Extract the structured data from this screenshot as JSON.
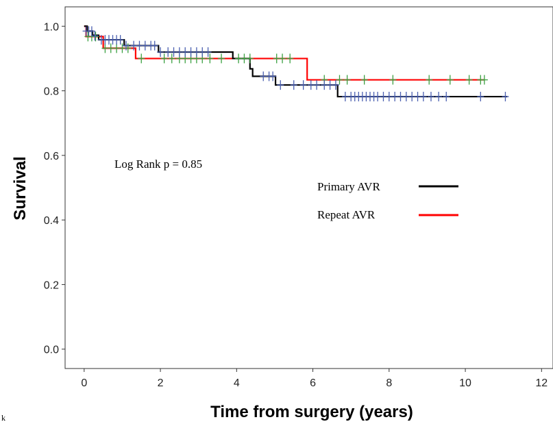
{
  "chart_data": {
    "type": "line",
    "subtype": "kaplan-meier",
    "title": "",
    "xlabel": "Time from surgery (years)",
    "ylabel": "Survival",
    "xlim": [
      -0.5,
      12.3
    ],
    "ylim": [
      -0.06,
      1.06
    ],
    "xticks": [
      0,
      2,
      4,
      6,
      8,
      10,
      12
    ],
    "yticks": [
      0.0,
      0.2,
      0.4,
      0.6,
      0.8,
      1.0
    ],
    "xtick_labels": [
      "0",
      "2",
      "4",
      "6",
      "8",
      "10",
      "12"
    ],
    "ytick_labels": [
      "0.0",
      "0.2",
      "0.4",
      "0.6",
      "0.8",
      "1.0"
    ],
    "annotation": "Log Rank p = 0.85",
    "grid": false,
    "legend_position": "right-middle",
    "series": [
      {
        "name": "Primary AVR",
        "color": "#000000",
        "censor_color": "#4a5fb0",
        "steps": [
          [
            0,
            1.0
          ],
          [
            0.08,
            0.985
          ],
          [
            0.22,
            0.972
          ],
          [
            0.38,
            0.958
          ],
          [
            1.05,
            0.94
          ],
          [
            1.95,
            0.92
          ],
          [
            3.9,
            0.9
          ],
          [
            4.35,
            0.868
          ],
          [
            4.42,
            0.845
          ],
          [
            5.02,
            0.818
          ],
          [
            6.65,
            0.782
          ],
          [
            11.1,
            0.782
          ]
        ],
        "censored": [
          [
            0.05,
            0.985
          ],
          [
            0.12,
            0.985
          ],
          [
            0.2,
            0.985
          ],
          [
            0.28,
            0.97
          ],
          [
            0.45,
            0.958
          ],
          [
            0.55,
            0.958
          ],
          [
            0.65,
            0.958
          ],
          [
            0.75,
            0.958
          ],
          [
            0.85,
            0.958
          ],
          [
            0.95,
            0.958
          ],
          [
            1.1,
            0.94
          ],
          [
            1.3,
            0.94
          ],
          [
            1.45,
            0.94
          ],
          [
            1.6,
            0.94
          ],
          [
            1.75,
            0.94
          ],
          [
            1.85,
            0.94
          ],
          [
            2.0,
            0.92
          ],
          [
            2.2,
            0.92
          ],
          [
            2.35,
            0.92
          ],
          [
            2.5,
            0.92
          ],
          [
            2.65,
            0.92
          ],
          [
            2.8,
            0.92
          ],
          [
            2.95,
            0.92
          ],
          [
            3.1,
            0.92
          ],
          [
            3.25,
            0.92
          ],
          [
            4.7,
            0.845
          ],
          [
            4.85,
            0.845
          ],
          [
            4.95,
            0.845
          ],
          [
            5.15,
            0.818
          ],
          [
            5.5,
            0.818
          ],
          [
            5.75,
            0.818
          ],
          [
            5.95,
            0.818
          ],
          [
            6.1,
            0.818
          ],
          [
            6.3,
            0.818
          ],
          [
            6.45,
            0.818
          ],
          [
            6.6,
            0.818
          ],
          [
            6.85,
            0.782
          ],
          [
            7.0,
            0.782
          ],
          [
            7.1,
            0.782
          ],
          [
            7.2,
            0.782
          ],
          [
            7.3,
            0.782
          ],
          [
            7.4,
            0.782
          ],
          [
            7.5,
            0.782
          ],
          [
            7.6,
            0.782
          ],
          [
            7.7,
            0.782
          ],
          [
            7.85,
            0.782
          ],
          [
            8.0,
            0.782
          ],
          [
            8.15,
            0.782
          ],
          [
            8.3,
            0.782
          ],
          [
            8.45,
            0.782
          ],
          [
            8.6,
            0.782
          ],
          [
            8.75,
            0.782
          ],
          [
            8.9,
            0.782
          ],
          [
            9.1,
            0.782
          ],
          [
            9.3,
            0.782
          ],
          [
            9.5,
            0.782
          ],
          [
            10.4,
            0.782
          ],
          [
            11.05,
            0.782
          ]
        ]
      },
      {
        "name": "Repeat AVR",
        "color": "#ff0000",
        "censor_color": "#3aa040",
        "steps": [
          [
            0,
            1.0
          ],
          [
            0.05,
            0.968
          ],
          [
            0.5,
            0.932
          ],
          [
            1.35,
            0.9
          ],
          [
            5.85,
            0.834
          ],
          [
            10.5,
            0.834
          ]
        ],
        "censored": [
          [
            0.1,
            0.968
          ],
          [
            0.2,
            0.968
          ],
          [
            0.3,
            0.968
          ],
          [
            0.55,
            0.932
          ],
          [
            0.7,
            0.932
          ],
          [
            0.85,
            0.932
          ],
          [
            1.0,
            0.932
          ],
          [
            1.15,
            0.932
          ],
          [
            1.5,
            0.9
          ],
          [
            2.1,
            0.9
          ],
          [
            2.3,
            0.9
          ],
          [
            2.5,
            0.9
          ],
          [
            2.65,
            0.9
          ],
          [
            2.8,
            0.9
          ],
          [
            2.95,
            0.9
          ],
          [
            3.1,
            0.9
          ],
          [
            3.3,
            0.9
          ],
          [
            3.6,
            0.9
          ],
          [
            4.05,
            0.9
          ],
          [
            4.2,
            0.9
          ],
          [
            4.35,
            0.9
          ],
          [
            5.05,
            0.9
          ],
          [
            5.2,
            0.9
          ],
          [
            5.4,
            0.9
          ],
          [
            6.3,
            0.834
          ],
          [
            6.7,
            0.834
          ],
          [
            6.9,
            0.834
          ],
          [
            7.35,
            0.834
          ],
          [
            8.1,
            0.834
          ],
          [
            9.05,
            0.834
          ],
          [
            9.6,
            0.834
          ],
          [
            10.1,
            0.834
          ],
          [
            10.4,
            0.834
          ],
          [
            10.5,
            0.834
          ]
        ]
      }
    ]
  },
  "corner_text": "k"
}
